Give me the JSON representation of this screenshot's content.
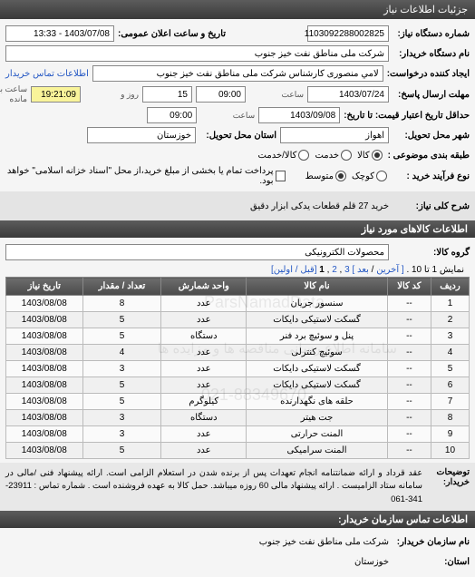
{
  "header": {
    "title": "جزئیات اطلاعات نیاز"
  },
  "fields": {
    "system_num_label": "شماره دستگاه نیاز:",
    "system_num": "1103092288002825",
    "buyer_label": "نام دستگاه خریدار:",
    "buyer": "شرکت ملی مناطق نفت خیز جنوب",
    "created_by_label": "ایجاد کننده درخواست:",
    "created_by": "لامي منصوری کارشناس شرکت ملی مناطق نفت خیز جنوب",
    "contact_link": "اطلاعات تماس خریدار",
    "deadline_label": "مهلت ارسال پاسخ:",
    "to_date_label": "تا تاریخ:",
    "date1": "1403/07/24",
    "time_label": "ساعت",
    "time1": "09:00",
    "day_label": "روز و",
    "days": "15",
    "remain": "19:21:09",
    "remain_label": "ساعت باقی مانده",
    "validity_label": "حداقل تاریخ اعتبار قیمت: تا تاریخ:",
    "date2": "1403/09/08",
    "time2": "09:00",
    "city_label": "شهر محل تحویل:",
    "city": "اهواز",
    "province_label": "استان محل تحویل:",
    "province": "خوزستان",
    "category_label": "طبقه بندی موضوعی :",
    "kala": "کالا",
    "khadamat": "خدمت",
    "kala_khadamat": "کالا/خدمت",
    "process_label": "نوع فرآیند خرید :",
    "small": "کوچک",
    "medium": "متوسط",
    "pay_check": "پرداخت تمام یا بخشی از مبلغ خرید،از محل \"اسناد خزانه اسلامی\" خواهد بود.",
    "announce_label": "تاریخ و ساعت اعلان عمومی:",
    "announce": "1403/07/08 - 13:33",
    "need_title_label": "شرح کلی نیاز:",
    "need_title": "خرید 27 قلم قطعات یدکی ابزار دقیق"
  },
  "items_section": {
    "title": "اطلاعات کالاهای مورد نیاز",
    "group_label": "گروه کالا:",
    "group_value": "محصولات الکترونیکی",
    "pager_text": "نمایش 1 تا 10 .",
    "pager_prev": "[ آخرین",
    "pager_next": "بعد ]",
    "pager_first": "[قبل / اولین]",
    "pages": [
      "3",
      "2",
      "1"
    ]
  },
  "table": {
    "cols": [
      "ردیف",
      "کد کالا",
      "نام کالا",
      "واحد شمارش",
      "تعداد / مقدار",
      "تاریخ نیاز"
    ],
    "rows": [
      [
        "1",
        "--",
        "سنسور جریان",
        "عدد",
        "8",
        "1403/08/08"
      ],
      [
        "2",
        "--",
        "گسکت لاستیکی دایکات",
        "عدد",
        "5",
        "1403/08/08"
      ],
      [
        "3",
        "--",
        "پنل و سوئیچ برد فنر",
        "دستگاه",
        "5",
        "1403/08/08"
      ],
      [
        "4",
        "--",
        "سوئیچ کنترلی",
        "عدد",
        "4",
        "1403/08/08"
      ],
      [
        "5",
        "--",
        "گسکت لاستیکی دایکات",
        "عدد",
        "3",
        "1403/08/08"
      ],
      [
        "6",
        "--",
        "گسکت لاستیکی دایکات",
        "عدد",
        "5",
        "1403/08/08"
      ],
      [
        "7",
        "--",
        "حلقه های نگهدارنده",
        "کیلوگرم",
        "5",
        "1403/08/08"
      ],
      [
        "8",
        "--",
        "جت هیتر",
        "دستگاه",
        "3",
        "1403/08/08"
      ],
      [
        "9",
        "--",
        "المنت حرارتی",
        "عدد",
        "3",
        "1403/08/08"
      ],
      [
        "10",
        "--",
        "المنت سرامیکی",
        "عدد",
        "5",
        "1403/08/08"
      ]
    ]
  },
  "notes": {
    "label": "توضیحات خریدار:",
    "text": "عقد قرداد و ارائه ضمانتنامه انجام تعهدات پس از برنده شدن در استعلام الزامی است. ارائه پیشنهاد فنی /مالی در سامانه ستاد الزامیست . ارائه پیشنهاد مالی 60 روزه میباشد. حمل کالا به عهده فروشنده است . شماره تماس : 23911-341-061"
  },
  "footer": {
    "title": "اطلاعات تماس سازمان خریدار:",
    "org_label": "نام سازمان خریدار:",
    "org": "شرکت ملی مناطق نفت خیز جنوب",
    "prov_label": "استان:",
    "prov": "خوزستان"
  },
  "watermarks": {
    "wm1": "ParsNamadData",
    "wm2": "سامانه اطلاع رسانی مناقصه ها و مزایده ها",
    "wm3": "021-88349670"
  }
}
